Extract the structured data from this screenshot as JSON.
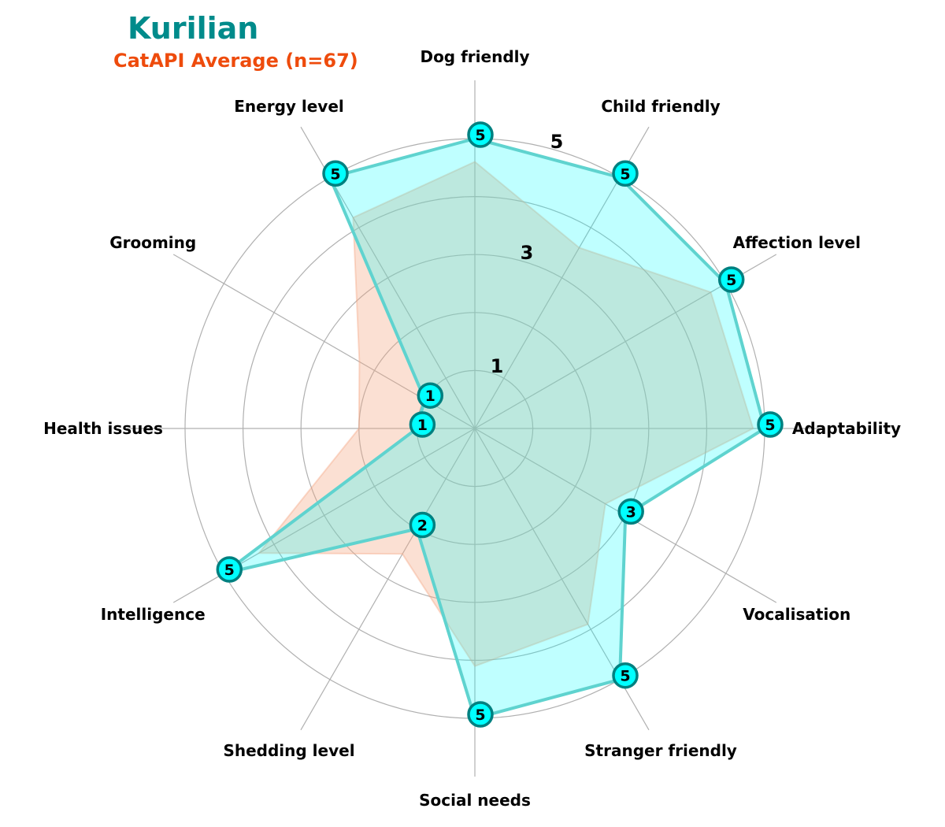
{
  "title": "Kurilian",
  "subtitle": "CatAPI Average (n=67)",
  "colors": {
    "title": "#008b8b",
    "subtitle": "#ee4b0c",
    "breed_fill": "#00ffff",
    "breed_line": "#5fd3cf",
    "marker_face": "#00ffff",
    "marker_edge": "#008080",
    "average_fill": "#f4a582",
    "grid": "#b0b0b0"
  },
  "chart_data": {
    "type": "radar",
    "title": "Kurilian",
    "subtitle": "CatAPI Average (n=67)",
    "axes": [
      "Dog friendly",
      "Child friendly",
      "Affection level",
      "Adaptability",
      "Vocalisation",
      "Stranger friendly",
      "Social needs",
      "Shedding level",
      "Intelligence",
      "Health issues",
      "Grooming",
      "Energy level"
    ],
    "rlim": [
      0,
      5
    ],
    "ring_ticks": [
      1,
      2,
      3,
      4,
      5
    ],
    "ring_tick_labels": [
      "1",
      "3",
      "5"
    ],
    "grid": true,
    "series": [
      {
        "name": "Kurilian",
        "values": [
          5,
          5,
          5,
          5,
          3,
          5,
          5,
          2,
          5,
          1,
          1,
          5
        ]
      },
      {
        "name": "CatAPI Average (n=67)",
        "values": [
          4.6,
          3.6,
          4.7,
          4.8,
          2.6,
          3.9,
          4.1,
          2.5,
          4.3,
          2.0,
          2.3,
          4.2
        ]
      }
    ]
  }
}
